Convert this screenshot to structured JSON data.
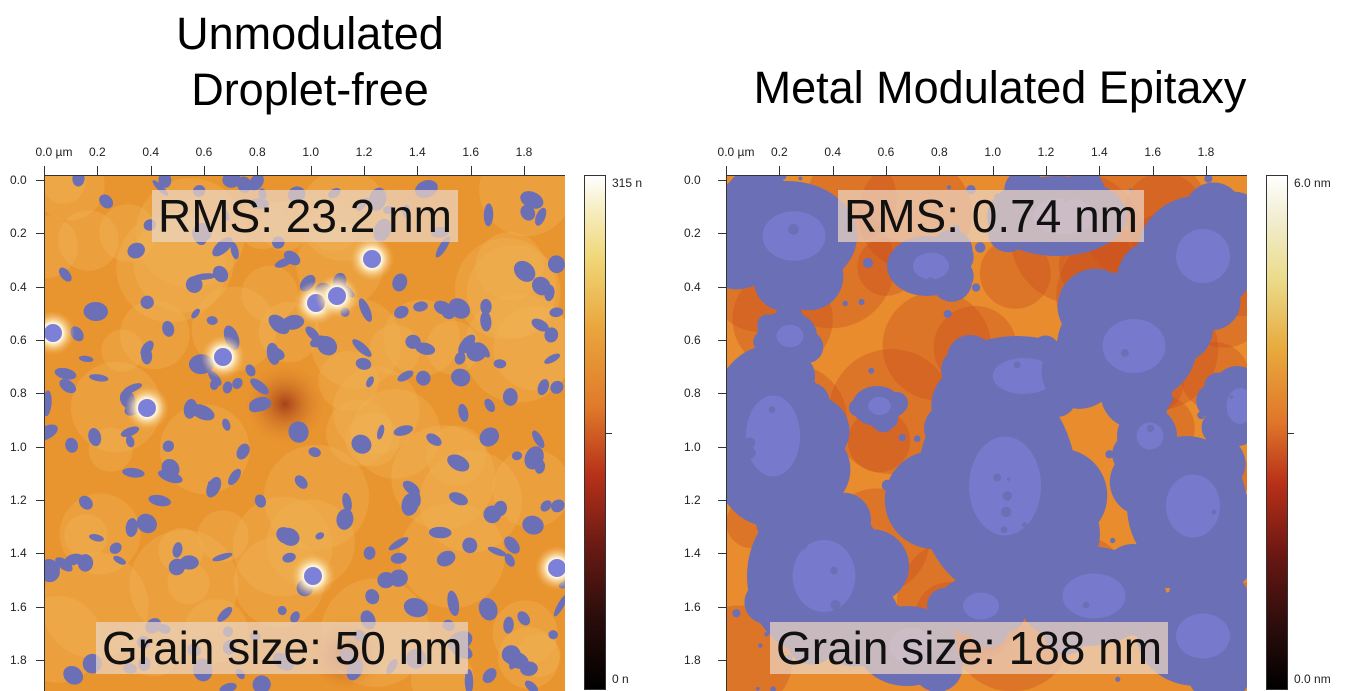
{
  "left": {
    "title_line1": "Unmodulated",
    "title_line2": "Droplet-free",
    "rms": "RMS: 23.2 nm",
    "grain": "Grain size: 50 nm",
    "x_ticks": [
      "0.0 µm",
      "0.2",
      "0.4",
      "0.6",
      "0.8",
      "1.0",
      "1.2",
      "1.4",
      "1.6",
      "1.8"
    ],
    "y_ticks": [
      "0.0",
      "0.2",
      "0.4",
      "0.6",
      "0.8",
      "1.0",
      "1.2",
      "1.4",
      "1.6",
      "1.8"
    ],
    "scale_max": "315 n",
    "scale_min": "0 n"
  },
  "right": {
    "title": "Metal Modulated Epitaxy",
    "rms": "RMS: 0.74 nm",
    "grain": "Grain size: 188 nm",
    "x_ticks": [
      "0.0 µm",
      "0.2",
      "0.4",
      "0.6",
      "0.8",
      "1.0",
      "1.2",
      "1.4",
      "1.6",
      "1.8"
    ],
    "y_ticks": [
      "0.0",
      "0.2",
      "0.4",
      "0.6",
      "0.8",
      "1.0",
      "1.2",
      "1.4",
      "1.6",
      "1.8"
    ],
    "scale_max": "6.0 nm",
    "scale_min": "0.0 nm"
  },
  "colors": {
    "surface": "#e9952f",
    "surface_dark": "#c8541c",
    "pit": "#6b6fb5",
    "peak": "#ffffff"
  }
}
